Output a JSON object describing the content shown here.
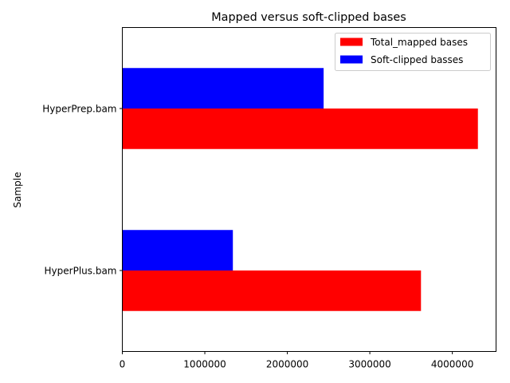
{
  "chart_data": {
    "type": "bar",
    "orientation": "horizontal",
    "title": "Mapped versus soft-clipped bases",
    "xlabel": "",
    "ylabel": "Sample",
    "categories": [
      "HyperPlus.bam",
      "HyperPrep.bam"
    ],
    "series": [
      {
        "name": "Total_mapped bases",
        "color": "#ff0000",
        "values": [
          3620000,
          4310000
        ]
      },
      {
        "name": "Soft-clipped basses",
        "color": "#0000ff",
        "values": [
          1340000,
          2440000
        ]
      }
    ],
    "xlim": [
      0,
      4530000
    ],
    "xticks": [
      0,
      1000000,
      2000000,
      3000000,
      4000000
    ],
    "xtick_labels": [
      "0",
      "1000000",
      "2000000",
      "3000000",
      "4000000"
    ],
    "grid": false,
    "legend_position": "top-right"
  }
}
